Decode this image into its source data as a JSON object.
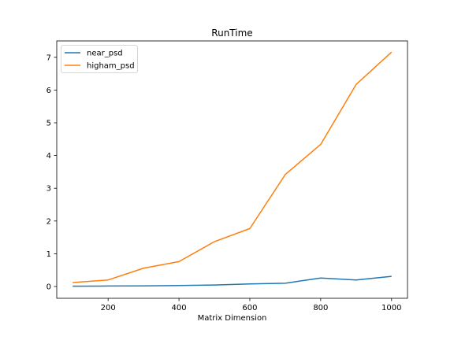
{
  "chart_data": {
    "type": "line",
    "title": "RunTime",
    "xlabel": "Matrix Dimension",
    "ylabel": "",
    "x": [
      100,
      200,
      300,
      400,
      500,
      600,
      700,
      800,
      900,
      1000
    ],
    "xlim": [
      55,
      1045
    ],
    "ylim": [
      -0.36,
      7.5
    ],
    "xticks": [
      200,
      400,
      600,
      800,
      1000
    ],
    "yticks": [
      0,
      1,
      2,
      3,
      4,
      5,
      6,
      7
    ],
    "grid": false,
    "legend_position": "upper-left",
    "series": [
      {
        "name": "near_psd",
        "color": "#1f77b4",
        "values": [
          0.01,
          0.015,
          0.02,
          0.03,
          0.045,
          0.08,
          0.1,
          0.26,
          0.2,
          0.31
        ]
      },
      {
        "name": "higham_psd",
        "color": "#ff7f0e",
        "values": [
          0.12,
          0.2,
          0.56,
          0.76,
          1.37,
          1.77,
          3.42,
          4.34,
          6.17,
          7.16
        ]
      }
    ]
  }
}
